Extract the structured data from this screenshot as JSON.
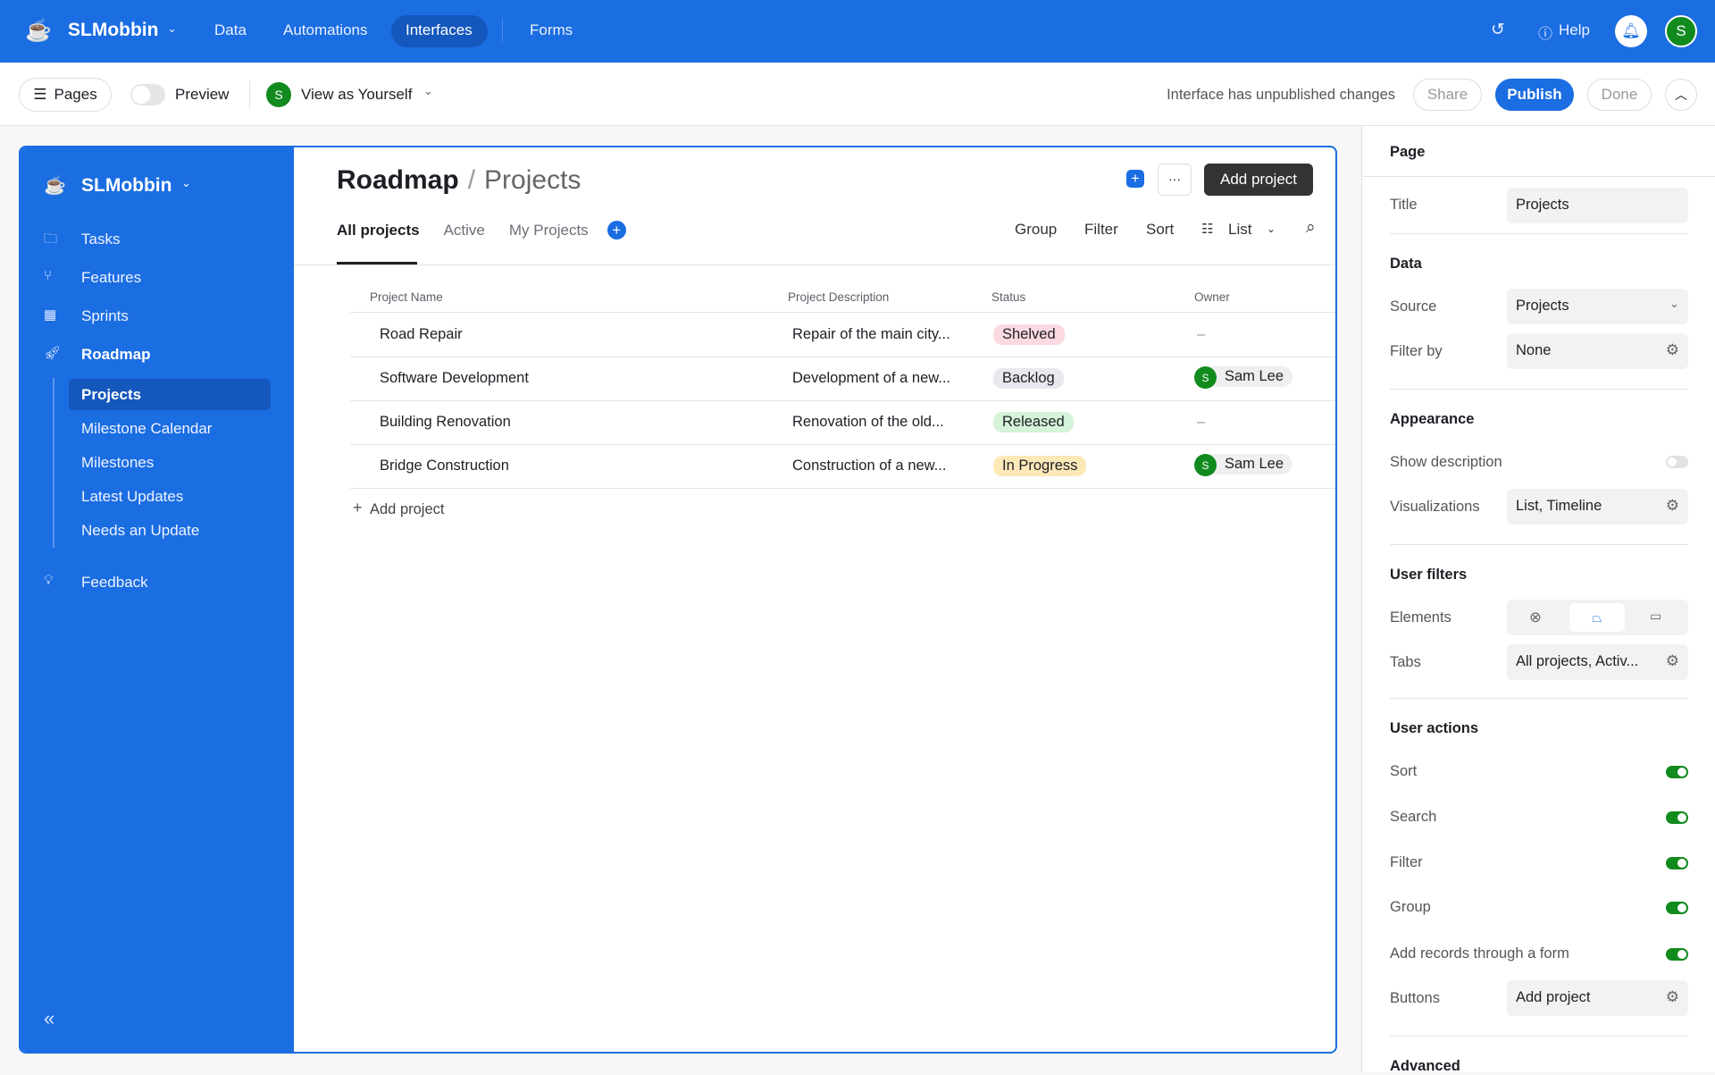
{
  "topbar": {
    "workspace": "SLMobbin",
    "nav": [
      "Data",
      "Automations",
      "Interfaces",
      "Forms"
    ],
    "active_nav": "Interfaces",
    "help": "Help",
    "user_initial": "S"
  },
  "toolbar": {
    "pages": "Pages",
    "preview": "Preview",
    "view_as": "View as Yourself",
    "status": "Interface has unpublished changes",
    "share": "Share",
    "publish": "Publish",
    "done": "Done"
  },
  "sidebar": {
    "workspace": "SLMobbin",
    "items": [
      {
        "label": "Tasks",
        "icon": "folder-icon"
      },
      {
        "label": "Features",
        "icon": "branch-icon"
      },
      {
        "label": "Sprints",
        "icon": "calendar-icon"
      },
      {
        "label": "Roadmap",
        "icon": "rocket-icon"
      }
    ],
    "sub_items": [
      "Projects",
      "Milestone Calendar",
      "Milestones",
      "Latest Updates",
      "Needs an Update"
    ],
    "active": "Projects",
    "feedback": "Feedback"
  },
  "main": {
    "title": "Roadmap",
    "separator": "/",
    "subtitle": "Projects",
    "add_button": "Add project",
    "more": "···",
    "tabs": [
      "All projects",
      "Active",
      "My Projects"
    ],
    "active_tab": "All projects",
    "tools": {
      "group": "Group",
      "filter": "Filter",
      "sort": "Sort",
      "view": "List"
    },
    "columns": [
      "Project Name",
      "Project Description",
      "Status",
      "Owner"
    ],
    "rows": [
      {
        "name": "Road Repair",
        "description": "Repair of the main city...",
        "status": "Shelved",
        "owner": "–",
        "owner_initial": ""
      },
      {
        "name": "Software Development",
        "description": "Development of a new...",
        "status": "Backlog",
        "owner": "Sam Lee",
        "owner_initial": "S"
      },
      {
        "name": "Building Renovation",
        "description": "Renovation of the old...",
        "status": "Released",
        "owner": "–",
        "owner_initial": ""
      },
      {
        "name": "Bridge Construction",
        "description": "Construction of a new...",
        "status": "In Progress",
        "owner": "Sam Lee",
        "owner_initial": "S"
      }
    ],
    "add_row": "Add project"
  },
  "status_colors": {
    "Shelved": "#fbd9e0",
    "Backlog": "#e8e9ee",
    "Released": "#d4f3d8",
    "In Progress": "#fde9b8"
  },
  "panel": {
    "page": "Page",
    "title_label": "Title",
    "title_value": "Projects",
    "data": "Data",
    "source_label": "Source",
    "source_value": "Projects",
    "filter_label": "Filter by",
    "filter_value": "None",
    "appearance": "Appearance",
    "show_desc": "Show description",
    "show_desc_on": false,
    "viz_label": "Visualizations",
    "viz_value": "List, Timeline",
    "user_filters": "User filters",
    "elements": "Elements",
    "tabs_label": "Tabs",
    "tabs_value": "All projects, Activ...",
    "user_actions": "User actions",
    "actions": [
      {
        "label": "Sort",
        "on": true
      },
      {
        "label": "Search",
        "on": true
      },
      {
        "label": "Filter",
        "on": true
      },
      {
        "label": "Group",
        "on": true
      },
      {
        "label": "Add records through a form",
        "on": true
      }
    ],
    "buttons_label": "Buttons",
    "buttons_value": "Add project",
    "advanced": "Advanced"
  },
  "colors": {
    "brand": "#1b6de2",
    "avatar": "#118a1e"
  }
}
